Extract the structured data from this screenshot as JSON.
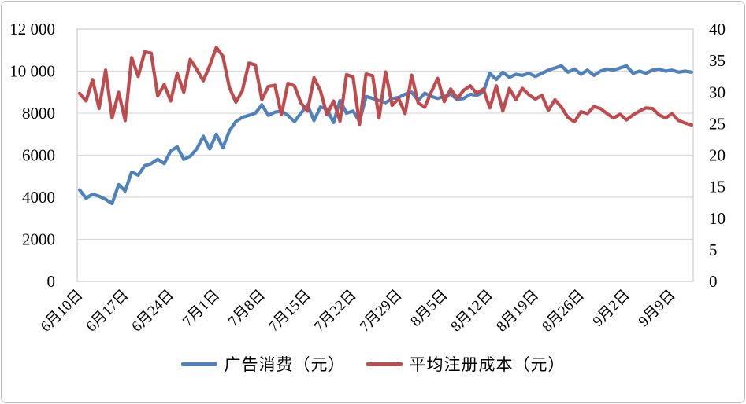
{
  "frame": {
    "background": "#ffffff",
    "border_color": "#b9b9b9"
  },
  "colors": {
    "ad_spend_line": "#4F81BD",
    "avg_cost_line": "#BE4B4E",
    "gridline": "#d9d9d9",
    "plot_border": "#cfcfcf",
    "text": "#000000"
  },
  "legend": {
    "items": [
      {
        "label": "广告消费（元）",
        "color": "#4F81BD"
      },
      {
        "label": "平均注册成本（元）",
        "color": "#BE4B4E"
      }
    ]
  },
  "chart_data": {
    "type": "line",
    "title": "",
    "xlabel": "",
    "ylabel_left": "",
    "ylabel_right": "",
    "grid": "horizontal",
    "legend_position": "bottom",
    "x_tick_labels": [
      "6月10日",
      "6月17日",
      "6月24日",
      "7月1日",
      "7月8日",
      "7月15日",
      "7月22日",
      "7月29日",
      "8月5日",
      "8月12日",
      "8月19日",
      "8月26日",
      "9月2日",
      "9月9日"
    ],
    "x_tick_every_n_points": 7,
    "left_axis": {
      "min": 0,
      "max": 12000,
      "step": 2000,
      "tick_labels": [
        "0",
        "2000",
        "4000",
        "6000",
        "8000",
        "10 000",
        "12 000"
      ]
    },
    "right_axis": {
      "min": 0,
      "max": 40,
      "step": 5,
      "tick_labels": [
        "0",
        "5",
        "10",
        "15",
        "20",
        "25",
        "30",
        "35",
        "40"
      ]
    },
    "series": [
      {
        "name": "广告消费（元）",
        "axis": "left",
        "color": "#4F81BD",
        "values": [
          4350,
          3950,
          4150,
          4050,
          3900,
          3700,
          4600,
          4300,
          5200,
          5050,
          5500,
          5600,
          5800,
          5600,
          6200,
          6400,
          5800,
          5950,
          6300,
          6900,
          6300,
          7000,
          6350,
          7150,
          7600,
          7800,
          7900,
          8000,
          8400,
          7900,
          8050,
          8100,
          7900,
          7600,
          8000,
          8400,
          7650,
          8300,
          8200,
          7550,
          8600,
          8000,
          8100,
          7600,
          8800,
          8700,
          8600,
          8500,
          8700,
          8750,
          8900,
          9000,
          8600,
          8950,
          8800,
          8700,
          8800,
          8900,
          8650,
          8700,
          8900,
          8850,
          9000,
          9900,
          9600,
          9950,
          9700,
          9850,
          9800,
          9900,
          9750,
          9900,
          10050,
          10150,
          10250,
          9950,
          10100,
          9850,
          10050,
          9800,
          10000,
          10100,
          10050,
          10150,
          10250,
          9900,
          10000,
          9900,
          10050,
          10100,
          10000,
          10050,
          9950,
          10000,
          9950
        ]
      },
      {
        "name": "平均注册成本（元）",
        "axis": "right",
        "color": "#BE4B4E",
        "values": [
          29.8,
          28.6,
          32.0,
          27.4,
          33.5,
          25.9,
          30.0,
          25.5,
          35.5,
          32.5,
          36.4,
          36.2,
          29.4,
          31.2,
          28.6,
          33.0,
          30.0,
          35.2,
          33.6,
          31.8,
          34.2,
          37.1,
          35.7,
          30.8,
          28.4,
          30.2,
          34.6,
          34.3,
          28.8,
          30.9,
          31.1,
          26.4,
          31.4,
          31.0,
          28.3,
          27.0,
          32.3,
          30.2,
          26.4,
          28.6,
          25.4,
          32.8,
          32.4,
          24.9,
          32.9,
          32.6,
          25.9,
          33.2,
          27.9,
          29.0,
          26.6,
          32.7,
          28.3,
          27.6,
          30.0,
          32.2,
          28.5,
          30.5,
          29.0,
          30.3,
          31.0,
          29.8,
          30.5,
          27.5,
          31.0,
          27.0,
          30.6,
          28.8,
          30.6,
          29.6,
          28.9,
          29.5,
          27.1,
          28.8,
          27.6,
          26.0,
          25.3,
          26.9,
          26.6,
          27.7,
          27.4,
          26.6,
          25.9,
          26.5,
          25.6,
          26.4,
          27.0,
          27.5,
          27.4,
          26.4,
          25.9,
          26.6,
          25.5,
          25.1,
          24.8
        ]
      }
    ]
  }
}
